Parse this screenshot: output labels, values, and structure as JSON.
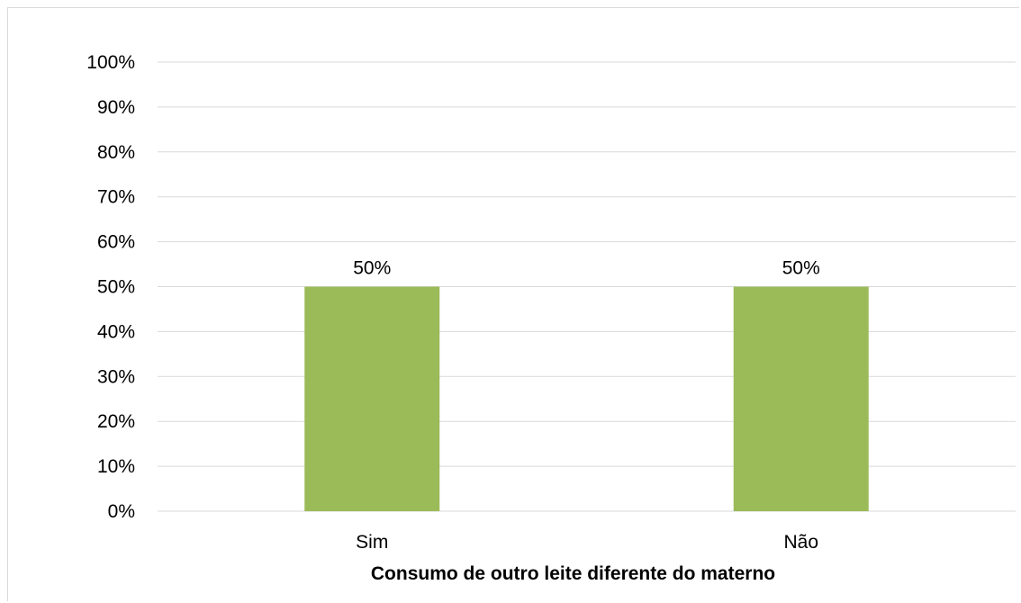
{
  "chart_data": {
    "type": "bar",
    "categories": [
      "Sim",
      "Não"
    ],
    "values": [
      50,
      50
    ],
    "data_labels": [
      "50%",
      "50%"
    ],
    "title": "",
    "xlabel": "Consumo de outro leite diferente do materno",
    "ylabel": "",
    "ylim": [
      0,
      100
    ],
    "yticks": [
      0,
      10,
      20,
      30,
      40,
      50,
      60,
      70,
      80,
      90,
      100
    ],
    "ytick_labels": [
      "0%",
      "10%",
      "20%",
      "30%",
      "40%",
      "50%",
      "60%",
      "70%",
      "80%",
      "90%",
      "100%"
    ],
    "grid": true,
    "legend": "none",
    "colors": {
      "bar": "#9bbb59",
      "grid": "#d9d9d9",
      "text": "#000000"
    }
  }
}
